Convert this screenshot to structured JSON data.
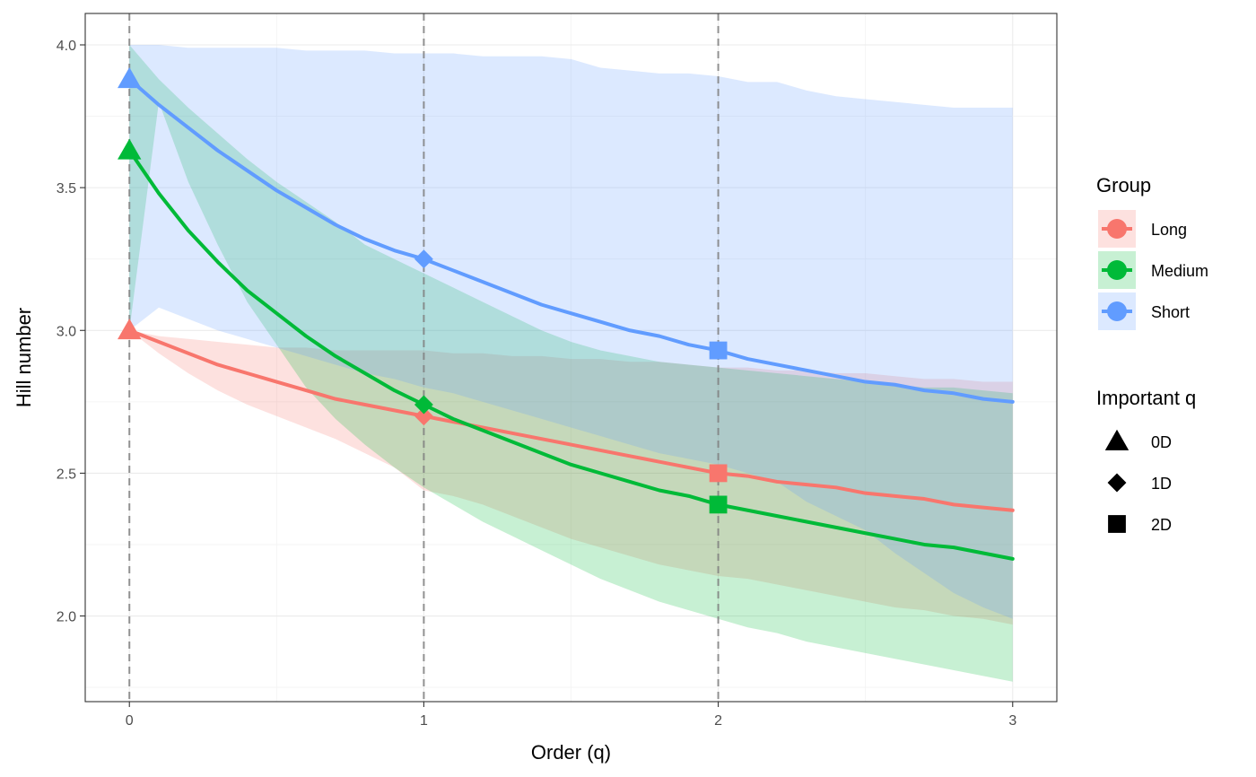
{
  "chart_data": {
    "type": "line",
    "xlabel": "Order (q)",
    "ylabel": "Hill number",
    "xlim": [
      -0.15,
      3.15
    ],
    "ylim": [
      1.7,
      4.11
    ],
    "x_ticks": [
      0,
      1,
      2,
      3
    ],
    "x_tick_labels": [
      "0",
      "1",
      "2",
      "3"
    ],
    "y_ticks": [
      2.0,
      2.5,
      3.0,
      3.5,
      4.0
    ],
    "y_tick_labels": [
      "2.0",
      "2.5",
      "3.0",
      "3.5",
      "4.0"
    ],
    "grid": true,
    "vlines": [
      0,
      1,
      2
    ],
    "x": [
      0,
      0.1,
      0.2,
      0.3,
      0.4,
      0.5,
      0.6,
      0.7,
      0.8,
      0.9,
      1.0,
      1.1,
      1.2,
      1.3,
      1.4,
      1.5,
      1.6,
      1.7,
      1.8,
      1.9,
      2.0,
      2.1,
      2.2,
      2.3,
      2.4,
      2.5,
      2.6,
      2.7,
      2.8,
      2.9,
      3.0
    ],
    "series": [
      {
        "name": "Long",
        "color": "#F8766D",
        "fill": "#FDDBD9",
        "values": [
          3.0,
          2.96,
          2.92,
          2.88,
          2.85,
          2.82,
          2.79,
          2.76,
          2.74,
          2.72,
          2.7,
          2.68,
          2.66,
          2.64,
          2.62,
          2.6,
          2.58,
          2.56,
          2.54,
          2.52,
          2.5,
          2.49,
          2.47,
          2.46,
          2.45,
          2.43,
          2.42,
          2.41,
          2.39,
          2.38,
          2.37
        ],
        "lower": [
          3.0,
          2.92,
          2.85,
          2.79,
          2.74,
          2.7,
          2.66,
          2.62,
          2.57,
          2.52,
          2.44,
          2.42,
          2.39,
          2.35,
          2.31,
          2.27,
          2.24,
          2.21,
          2.18,
          2.16,
          2.14,
          2.13,
          2.11,
          2.09,
          2.07,
          2.05,
          2.03,
          2.02,
          2.0,
          1.99,
          1.97
        ],
        "upper": [
          3.0,
          2.98,
          2.97,
          2.96,
          2.95,
          2.94,
          2.94,
          2.93,
          2.93,
          2.93,
          2.93,
          2.92,
          2.92,
          2.91,
          2.91,
          2.9,
          2.9,
          2.89,
          2.89,
          2.88,
          2.87,
          2.87,
          2.86,
          2.86,
          2.85,
          2.85,
          2.84,
          2.83,
          2.83,
          2.82,
          2.82
        ]
      },
      {
        "name": "Medium",
        "color": "#00BA38",
        "fill": "#C8EED3",
        "values": [
          3.63,
          3.48,
          3.35,
          3.24,
          3.14,
          3.06,
          2.98,
          2.91,
          2.85,
          2.79,
          2.74,
          2.69,
          2.65,
          2.61,
          2.57,
          2.53,
          2.5,
          2.47,
          2.44,
          2.42,
          2.39,
          2.37,
          2.35,
          2.33,
          2.31,
          2.29,
          2.27,
          2.25,
          2.24,
          2.22,
          2.2
        ],
        "lower": [
          3.0,
          3.8,
          3.52,
          3.3,
          3.1,
          2.95,
          2.8,
          2.69,
          2.6,
          2.52,
          2.45,
          2.39,
          2.33,
          2.28,
          2.23,
          2.18,
          2.13,
          2.09,
          2.05,
          2.02,
          1.99,
          1.96,
          1.94,
          1.91,
          1.89,
          1.87,
          1.85,
          1.83,
          1.81,
          1.79,
          1.77
        ],
        "upper": [
          4.0,
          3.88,
          3.78,
          3.69,
          3.6,
          3.52,
          3.45,
          3.38,
          3.3,
          3.25,
          3.2,
          3.15,
          3.1,
          3.05,
          3.0,
          2.96,
          2.93,
          2.91,
          2.89,
          2.88,
          2.87,
          2.86,
          2.85,
          2.84,
          2.83,
          2.82,
          2.81,
          2.8,
          2.8,
          2.79,
          2.78
        ]
      },
      {
        "name": "Short",
        "color": "#619CFF",
        "fill": "#DCE8FC",
        "values": [
          3.88,
          3.79,
          3.71,
          3.63,
          3.56,
          3.49,
          3.43,
          3.37,
          3.32,
          3.28,
          3.25,
          3.21,
          3.17,
          3.13,
          3.09,
          3.06,
          3.03,
          3.0,
          2.98,
          2.95,
          2.93,
          2.9,
          2.88,
          2.86,
          2.84,
          2.82,
          2.81,
          2.79,
          2.78,
          2.76,
          2.75
        ],
        "lower": [
          3.0,
          3.08,
          3.04,
          3.0,
          2.97,
          2.94,
          2.91,
          2.88,
          2.85,
          2.83,
          2.8,
          2.78,
          2.75,
          2.72,
          2.69,
          2.66,
          2.63,
          2.6,
          2.57,
          2.55,
          2.53,
          2.5,
          2.47,
          2.4,
          2.35,
          2.3,
          2.22,
          2.15,
          2.08,
          2.03,
          1.99
        ],
        "upper": [
          4.0,
          4.0,
          3.99,
          3.99,
          3.99,
          3.99,
          3.98,
          3.98,
          3.98,
          3.97,
          3.97,
          3.97,
          3.96,
          3.96,
          3.96,
          3.95,
          3.92,
          3.91,
          3.9,
          3.9,
          3.89,
          3.87,
          3.87,
          3.84,
          3.82,
          3.81,
          3.8,
          3.79,
          3.78,
          3.78,
          3.78
        ]
      }
    ],
    "points": [
      {
        "group": "Long",
        "q": "0D",
        "x": 0,
        "y": 3.0
      },
      {
        "group": "Long",
        "q": "1D",
        "x": 1,
        "y": 2.7
      },
      {
        "group": "Long",
        "q": "2D",
        "x": 2,
        "y": 2.5
      },
      {
        "group": "Medium",
        "q": "0D",
        "x": 0,
        "y": 3.63
      },
      {
        "group": "Medium",
        "q": "1D",
        "x": 1,
        "y": 2.74
      },
      {
        "group": "Medium",
        "q": "2D",
        "x": 2,
        "y": 2.39
      },
      {
        "group": "Short",
        "q": "0D",
        "x": 0,
        "y": 3.88
      },
      {
        "group": "Short",
        "q": "1D",
        "x": 1,
        "y": 3.25
      },
      {
        "group": "Short",
        "q": "2D",
        "x": 2,
        "y": 2.93
      }
    ],
    "legend": {
      "placement": "right",
      "group_title": "Group",
      "group_items": [
        "Long",
        "Medium",
        "Short"
      ],
      "shape_title": "Important q",
      "shape_items": [
        {
          "label": "0D",
          "shape": "triangle-icon"
        },
        {
          "label": "1D",
          "shape": "diamond-icon"
        },
        {
          "label": "2D",
          "shape": "square-icon"
        }
      ]
    }
  }
}
